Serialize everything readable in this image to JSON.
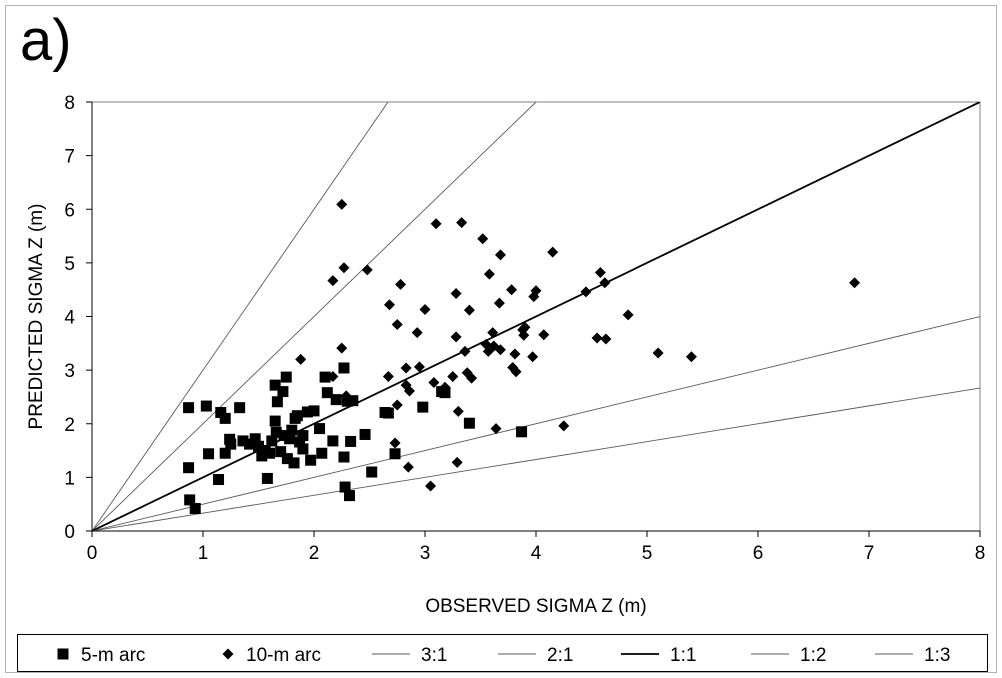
{
  "panel_label": "a)",
  "chart_data": {
    "type": "scatter",
    "xlabel": "OBSERVED SIGMA Z (m)",
    "ylabel": "PREDICTED SIGMA Z (m)",
    "xlim": [
      0,
      8
    ],
    "ylim": [
      0,
      8
    ],
    "xticks": [
      "0",
      "1",
      "2",
      "3",
      "4",
      "5",
      "6",
      "7",
      "8"
    ],
    "yticks": [
      "0",
      "1",
      "2",
      "3",
      "4",
      "5",
      "6",
      "7",
      "8"
    ],
    "grid": false,
    "legend_position": "bottom",
    "series": [
      {
        "name": "5-m arc",
        "marker": "square",
        "color": "#000000",
        "points": [
          [
            0.87,
            2.3
          ],
          [
            1.03,
            2.33
          ],
          [
            0.87,
            1.18
          ],
          [
            0.88,
            0.58
          ],
          [
            0.93,
            0.42
          ],
          [
            1.05,
            1.44
          ],
          [
            1.14,
            0.96
          ],
          [
            1.16,
            2.21
          ],
          [
            1.2,
            2.1
          ],
          [
            1.2,
            1.45
          ],
          [
            1.24,
            1.71
          ],
          [
            1.25,
            1.62
          ],
          [
            1.33,
            2.3
          ],
          [
            1.36,
            1.68
          ],
          [
            1.42,
            1.62
          ],
          [
            1.47,
            1.72
          ],
          [
            1.5,
            1.58
          ],
          [
            1.53,
            1.4
          ],
          [
            1.56,
            1.5
          ],
          [
            1.58,
            0.98
          ],
          [
            1.6,
            1.45
          ],
          [
            1.62,
            1.68
          ],
          [
            1.65,
            2.72
          ],
          [
            1.65,
            2.05
          ],
          [
            1.66,
            1.84
          ],
          [
            1.67,
            2.41
          ],
          [
            1.7,
            1.48
          ],
          [
            1.72,
            2.6
          ],
          [
            1.73,
            1.78
          ],
          [
            1.75,
            2.87
          ],
          [
            1.76,
            1.35
          ],
          [
            1.78,
            1.72
          ],
          [
            1.8,
            1.88
          ],
          [
            1.82,
            1.27
          ],
          [
            1.83,
            2.1
          ],
          [
            1.85,
            2.15
          ],
          [
            1.87,
            1.66
          ],
          [
            1.9,
            1.78
          ],
          [
            1.9,
            1.53
          ],
          [
            1.94,
            2.22
          ],
          [
            1.97,
            1.32
          ],
          [
            2.0,
            2.24
          ],
          [
            2.05,
            1.91
          ],
          [
            2.07,
            1.45
          ],
          [
            2.1,
            2.87
          ],
          [
            2.12,
            2.58
          ],
          [
            2.17,
            1.68
          ],
          [
            2.2,
            2.45
          ],
          [
            2.27,
            3.04
          ],
          [
            2.27,
            1.38
          ],
          [
            2.28,
            0.82
          ],
          [
            2.3,
            2.42
          ],
          [
            2.32,
            0.66
          ],
          [
            2.33,
            1.67
          ],
          [
            2.35,
            2.43
          ],
          [
            2.46,
            1.8
          ],
          [
            2.52,
            1.1
          ],
          [
            2.64,
            2.21
          ],
          [
            2.67,
            2.2
          ],
          [
            2.73,
            1.44
          ],
          [
            2.98,
            2.31
          ],
          [
            3.15,
            2.6
          ],
          [
            3.18,
            2.58
          ],
          [
            3.4,
            2.01
          ],
          [
            3.87,
            1.85
          ]
        ]
      },
      {
        "name": "10-m arc",
        "marker": "diamond",
        "color": "#000000",
        "points": [
          [
            1.88,
            3.2
          ],
          [
            2.17,
            4.67
          ],
          [
            2.17,
            2.88
          ],
          [
            2.25,
            6.09
          ],
          [
            2.25,
            3.41
          ],
          [
            2.27,
            4.91
          ],
          [
            2.29,
            2.52
          ],
          [
            2.32,
            2.4
          ],
          [
            2.48,
            4.87
          ],
          [
            2.67,
            2.88
          ],
          [
            2.68,
            4.22
          ],
          [
            2.73,
            1.64
          ],
          [
            2.75,
            3.85
          ],
          [
            2.75,
            2.35
          ],
          [
            2.78,
            4.6
          ],
          [
            2.83,
            2.72
          ],
          [
            2.85,
            1.19
          ],
          [
            2.86,
            2.61
          ],
          [
            2.83,
            3.04
          ],
          [
            2.93,
            3.7
          ],
          [
            2.95,
            3.06
          ],
          [
            3.0,
            4.13
          ],
          [
            3.05,
            0.84
          ],
          [
            3.08,
            2.77
          ],
          [
            3.1,
            5.73
          ],
          [
            3.18,
            2.68
          ],
          [
            3.25,
            2.88
          ],
          [
            3.28,
            4.43
          ],
          [
            3.28,
            3.62
          ],
          [
            3.29,
            1.28
          ],
          [
            3.3,
            2.23
          ],
          [
            3.33,
            5.75
          ],
          [
            3.36,
            3.35
          ],
          [
            3.38,
            2.95
          ],
          [
            3.4,
            4.12
          ],
          [
            3.42,
            2.85
          ],
          [
            3.52,
            5.45
          ],
          [
            3.55,
            3.48
          ],
          [
            3.57,
            3.35
          ],
          [
            3.58,
            4.79
          ],
          [
            3.61,
            3.7
          ],
          [
            3.62,
            3.45
          ],
          [
            3.64,
            1.91
          ],
          [
            3.67,
            4.25
          ],
          [
            3.68,
            3.38
          ],
          [
            3.68,
            5.15
          ],
          [
            3.78,
            4.5
          ],
          [
            3.79,
            3.05
          ],
          [
            3.81,
            3.3
          ],
          [
            3.82,
            2.97
          ],
          [
            3.88,
            3.75
          ],
          [
            3.89,
            3.65
          ],
          [
            3.9,
            3.8
          ],
          [
            3.97,
            3.25
          ],
          [
            3.98,
            4.37
          ],
          [
            4.0,
            4.48
          ],
          [
            4.07,
            3.66
          ],
          [
            4.15,
            5.2
          ],
          [
            4.25,
            1.96
          ],
          [
            4.45,
            4.46
          ],
          [
            4.55,
            3.6
          ],
          [
            4.58,
            4.82
          ],
          [
            4.62,
            4.63
          ],
          [
            4.63,
            3.58
          ],
          [
            4.83,
            4.03
          ],
          [
            5.1,
            3.32
          ],
          [
            5.4,
            3.25
          ],
          [
            6.87,
            4.63
          ]
        ]
      }
    ],
    "reference_lines": [
      {
        "name": "3:1",
        "slope": 3,
        "color": "#000000",
        "weight": "thin"
      },
      {
        "name": "2:1",
        "slope": 2,
        "color": "#000000",
        "weight": "thin"
      },
      {
        "name": "1:1",
        "slope": 1,
        "color": "#000000",
        "weight": "bold"
      },
      {
        "name": "1:2",
        "slope": 0.5,
        "color": "#000000",
        "weight": "thin"
      },
      {
        "name": "1:3",
        "slope": 0.3333,
        "color": "#000000",
        "weight": "thin"
      }
    ]
  }
}
